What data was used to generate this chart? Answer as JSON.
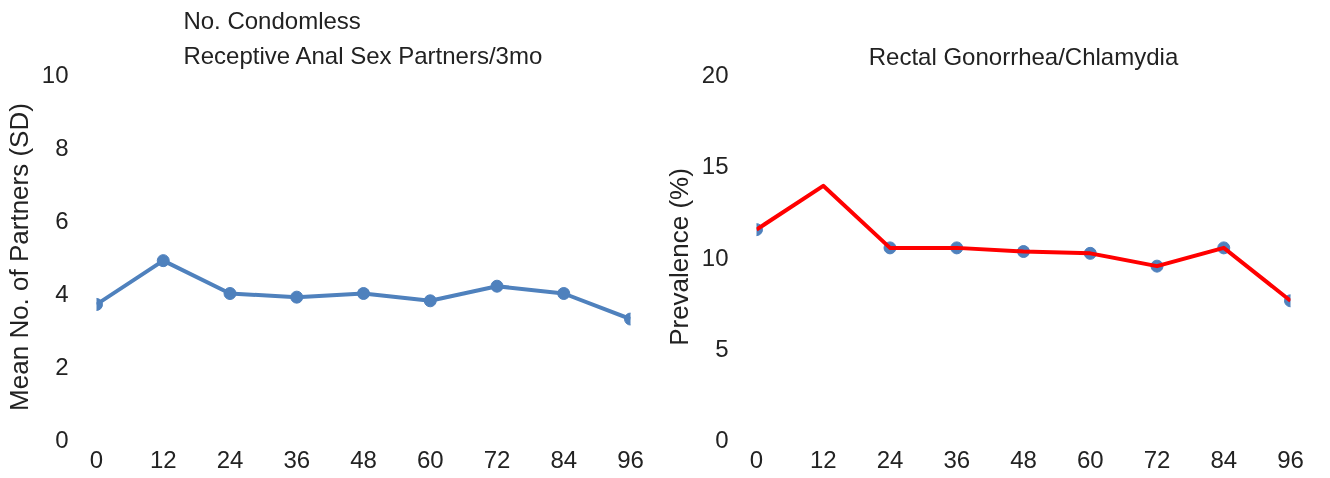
{
  "chart_data": [
    {
      "type": "line",
      "title": "No. Condomless\nReceptive Anal Sex Partners/3mo",
      "ylabel": "Mean No. of Partners (SD)",
      "x": [
        0,
        12,
        24,
        36,
        48,
        60,
        72,
        84,
        96
      ],
      "xlim": [
        0,
        96
      ],
      "xticks": [
        0,
        12,
        24,
        36,
        48,
        60,
        72,
        84,
        96
      ],
      "ylim": [
        0,
        10
      ],
      "yticks": [
        0,
        2,
        4,
        6,
        8,
        10
      ],
      "grid": false,
      "series": [
        {
          "color": "#4f81bd",
          "marker": "circle",
          "values": [
            3.7,
            4.9,
            4.0,
            3.9,
            4.0,
            3.8,
            4.2,
            4.0,
            3.3
          ]
        }
      ]
    },
    {
      "type": "line",
      "title": "Rectal Gonorrhea/Chlamydia",
      "ylabel": "Prevalence (%)",
      "x": [
        0,
        12,
        24,
        36,
        48,
        60,
        72,
        84,
        96
      ],
      "xlim": [
        0,
        96
      ],
      "xticks": [
        0,
        12,
        24,
        36,
        48,
        60,
        72,
        84,
        96
      ],
      "ylim": [
        0,
        20
      ],
      "yticks": [
        0,
        5,
        10,
        15,
        20
      ],
      "grid": false,
      "series": [
        {
          "type": "scatter",
          "color": "#4f81bd",
          "marker": "circle",
          "values": [
            11.5,
            null,
            10.5,
            10.5,
            10.3,
            10.2,
            9.5,
            10.5,
            7.6
          ]
        },
        {
          "color": "#ff0000",
          "marker": "none",
          "values": [
            11.5,
            13.9,
            10.5,
            10.5,
            10.3,
            10.2,
            9.5,
            10.5,
            7.6
          ]
        }
      ]
    }
  ]
}
